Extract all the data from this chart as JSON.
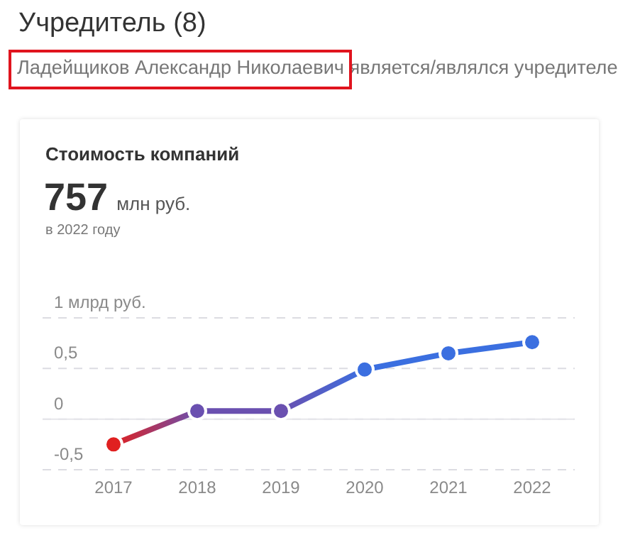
{
  "chart_data": {
    "type": "line",
    "title": "Учредитель (8)",
    "subtitle": "Ладейщиков Александр Николаевич является/являлся учредителе",
    "annotations": [
      "Стоимость компаний",
      "757",
      "млн руб.",
      "в 2022 году"
    ],
    "categories": [
      "2017",
      "2018",
      "2019",
      "2020",
      "2021",
      "2022"
    ],
    "series": [
      {
        "color": "#3b6fe0",
        "colors": [
          "#e02020",
          "#6a50b0",
          "#6a50b0",
          "#3b6fe0",
          "#3b6fe0",
          "#3b6fe0"
        ],
        "values": [
          -0.25,
          0.08,
          0.08,
          0.49,
          0.65,
          0.76
        ]
      }
    ],
    "ylim": [
      -0.5,
      1
    ],
    "yticks": [
      {
        "value": -0.5,
        "label": "-0,5"
      },
      0,
      {
        "value": 0.5,
        "label": "0,5"
      },
      {
        "value": 1,
        "label": "1 млрд руб."
      }
    ],
    "grid": "y",
    "ref_lines": [
      {
        "axis": "y",
        "value": 0,
        "color": "#e6e6ea"
      }
    ],
    "marker": "circle",
    "line_style": "solid",
    "legend": false
  }
}
